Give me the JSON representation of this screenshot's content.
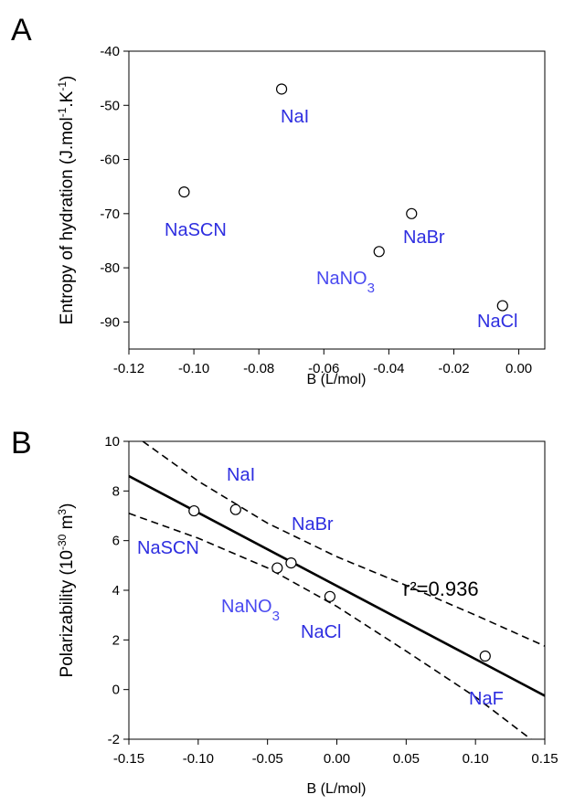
{
  "colors": {
    "axis": "#000000",
    "label": "#2e2ee0",
    "label_light": "#4a4af0",
    "marker_fill": "#ffffff"
  },
  "chart_data": [
    {
      "panel": "A",
      "type": "scatter",
      "xlabel": "B (L/mol)",
      "ylabel": "Entropy of hydration (J.mol",
      "ylabel_sup1": "-1",
      "ylabel_mid": ".K",
      "ylabel_sup2": "-1",
      "ylabel_close": ")",
      "xlim": [
        -0.12,
        0.008
      ],
      "ylim": [
        -95,
        -40
      ],
      "xticks": [
        -0.12,
        -0.1,
        -0.08,
        -0.06,
        -0.04,
        -0.02,
        0.0
      ],
      "xtick_labels": [
        "-0.12",
        "-0.10",
        "-0.08",
        "-0.06",
        "-0.04",
        "-0.02",
        "0.00"
      ],
      "yticks": [
        -90,
        -80,
        -70,
        -60,
        -50,
        -40
      ],
      "ytick_labels": [
        "-90",
        "-80",
        "-70",
        "-60",
        "-50",
        "-40"
      ],
      "points": [
        {
          "label": "NaI",
          "x": -0.073,
          "y": -47
        },
        {
          "label": "NaSCN",
          "x": -0.103,
          "y": -66
        },
        {
          "label": "NaBr",
          "x": -0.033,
          "y": -70
        },
        {
          "label": "NaNO3",
          "label_base": "NaNO",
          "label_sub": "3",
          "x": -0.043,
          "y": -77
        },
        {
          "label": "NaCl",
          "x": -0.005,
          "y": -87
        }
      ]
    },
    {
      "panel": "B",
      "type": "scatter",
      "xlabel": "B (L/mol)",
      "ylabel": "Polarizability (10",
      "ylabel_sup": "-30",
      "ylabel_unit": " m",
      "ylabel_sup2": "3",
      "ylabel_close": ")",
      "xlim": [
        -0.15,
        0.15
      ],
      "ylim": [
        -2,
        10
      ],
      "xticks": [
        -0.15,
        -0.1,
        -0.05,
        0.0,
        0.05,
        0.1,
        0.15
      ],
      "xtick_labels": [
        "-0.15",
        "-0.10",
        "-0.05",
        "0.00",
        "0.05",
        "0.10",
        "0.15"
      ],
      "yticks": [
        -2,
        0,
        2,
        4,
        6,
        8,
        10
      ],
      "ytick_labels": [
        "-2",
        "0",
        "2",
        "4",
        "6",
        "8",
        "10"
      ],
      "annotation": "r²=0.936",
      "points": [
        {
          "label": "NaI",
          "x": -0.073,
          "y": 7.25
        },
        {
          "label": "NaSCN",
          "x": -0.103,
          "y": 7.2
        },
        {
          "label": "NaBr",
          "x": -0.033,
          "y": 5.1
        },
        {
          "label": "NaNO3",
          "label_base": "NaNO",
          "label_sub": "3",
          "x": -0.043,
          "y": 4.9
        },
        {
          "label": "NaCl",
          "x": -0.005,
          "y": 3.75
        },
        {
          "label": "NaF",
          "x": 0.107,
          "y": 1.35
        }
      ],
      "regression_line": {
        "x": [
          -0.15,
          0.15
        ],
        "y": [
          8.6,
          -0.25
        ]
      },
      "confidence_upper": {
        "x": [
          -0.14,
          -0.1,
          -0.05,
          0.0,
          0.05,
          0.1,
          0.15
        ],
        "y": [
          10.0,
          8.4,
          6.7,
          5.35,
          4.2,
          3.0,
          1.75
        ]
      },
      "confidence_lower": {
        "x": [
          -0.15,
          -0.1,
          -0.05,
          0.0,
          0.05,
          0.1,
          0.14
        ],
        "y": [
          7.1,
          6.1,
          4.9,
          3.35,
          1.55,
          -0.3,
          -2.0
        ]
      }
    }
  ]
}
